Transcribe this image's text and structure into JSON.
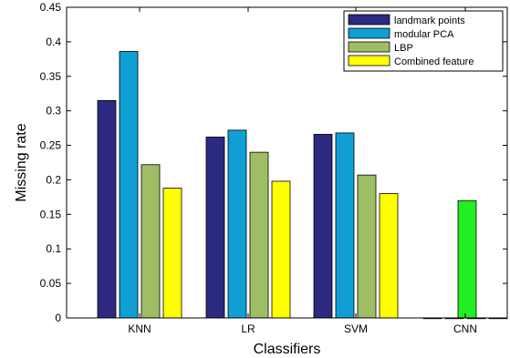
{
  "chart_data": {
    "type": "bar",
    "title": "",
    "xlabel": "Classifiers",
    "ylabel": "Missing rate",
    "ylim": [
      0,
      0.45
    ],
    "yticks": [
      0,
      0.05,
      0.1,
      0.15,
      0.2,
      0.25,
      0.3,
      0.35,
      0.4,
      0.45
    ],
    "ytick_labels": [
      "0",
      "0.05",
      "0.1",
      "0.15",
      "0.2",
      "0.25",
      "0.3",
      "0.35",
      "0.4",
      "0.45"
    ],
    "categories": [
      "KNN",
      "LR",
      "SVM",
      "CNN"
    ],
    "series": [
      {
        "name": "landmark points",
        "color": "#2b2a80",
        "values": [
          0.315,
          0.262,
          0.266,
          0
        ]
      },
      {
        "name": "modular PCA",
        "color": "#0f9fd4",
        "values": [
          0.386,
          0.272,
          0.268,
          0
        ]
      },
      {
        "name": "LBP",
        "color": "#9fbd64",
        "values": [
          0.222,
          0.24,
          0.207,
          0
        ]
      },
      {
        "name": "Combined feature",
        "color": "#ffff00",
        "values": [
          0.188,
          0.198,
          0.18,
          0
        ]
      }
    ],
    "extra_bars": [
      {
        "category": "CNN",
        "color": "#22ee22",
        "value": 0.17
      }
    ],
    "grid": false,
    "legend_position": "top-right"
  }
}
